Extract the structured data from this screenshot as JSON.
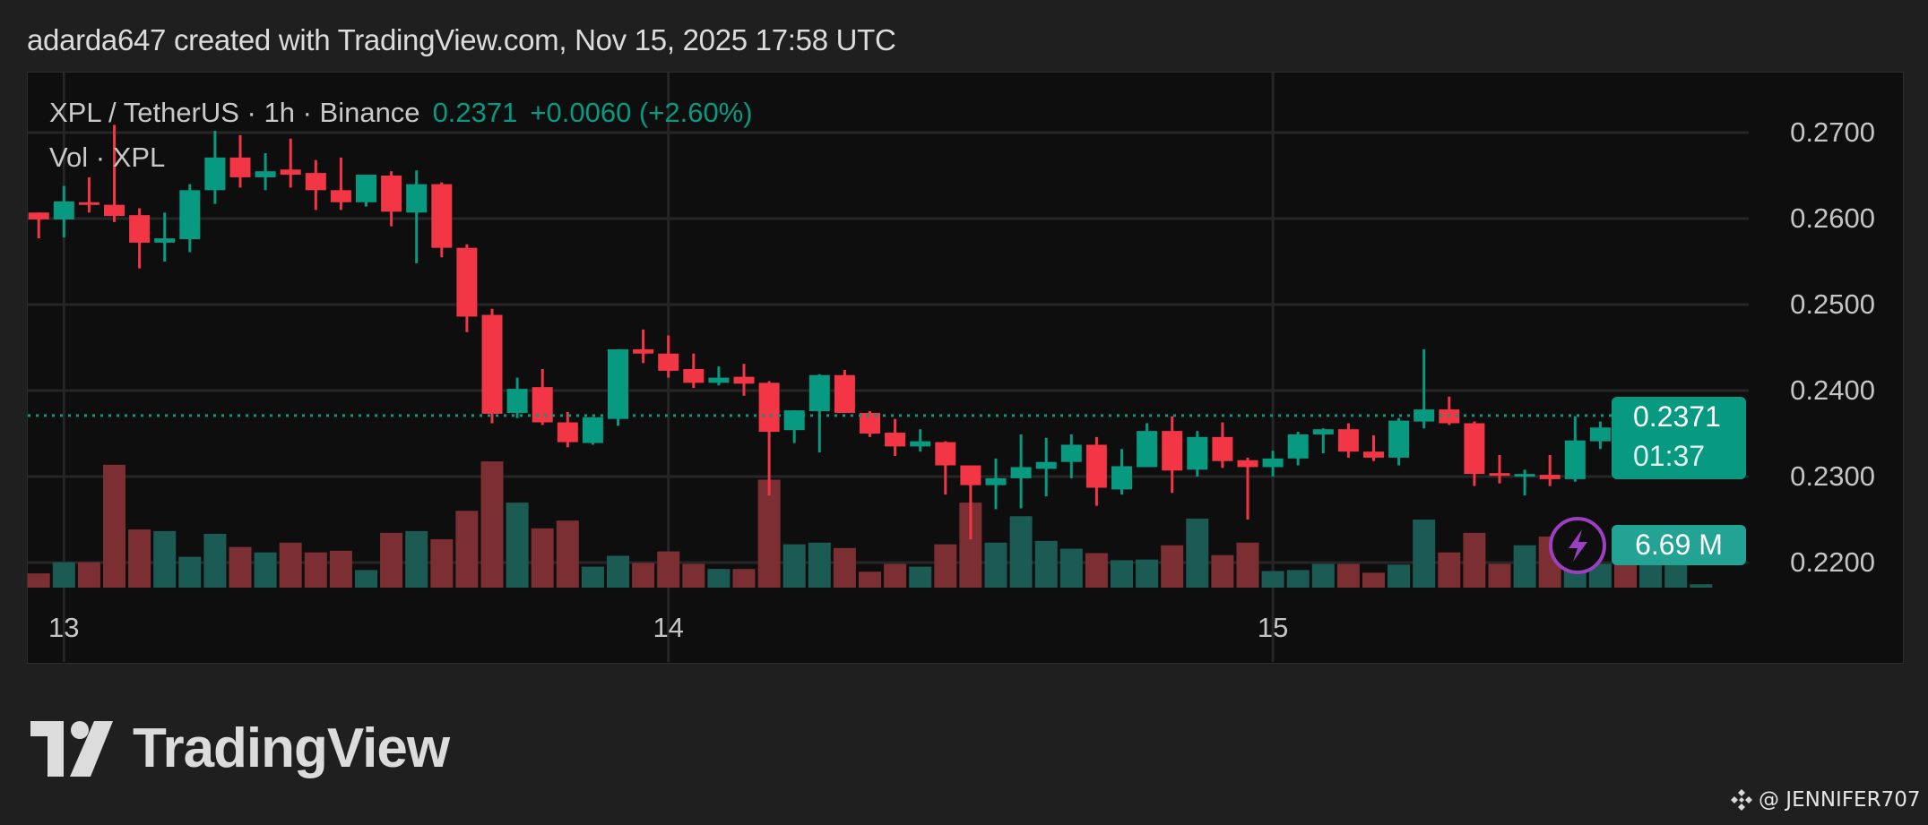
{
  "header": {
    "caption": "adarda647 created with TradingView.com, Nov 15, 2025 17:58 UTC"
  },
  "legend": {
    "symbol": "XPL / TetherUS · 1h · Binance",
    "last": "0.2371",
    "change": "+0.0060 (+2.60%)",
    "volume_label": "Vol · XPL"
  },
  "price_tag": {
    "price": "0.2371",
    "countdown": "01:37"
  },
  "volume_tag": "6.69 M",
  "logo_text": "TradingView",
  "watermark": "@ JENNIFER707",
  "colors": {
    "up": "#089981",
    "down": "#f23645",
    "vol_up": "#1c5a54",
    "vol_down": "#7b2f32",
    "bg": "#0e0e0e"
  },
  "chart_data": {
    "type": "candlestick",
    "title": "XPL / TetherUS · 1h · Binance",
    "interval": "1h",
    "x_tick_labels": [
      "13",
      "14",
      "15"
    ],
    "x_tick_candle_index": [
      1,
      25,
      49
    ],
    "y_tick_labels": [
      "0.2700",
      "0.2600",
      "0.2500",
      "0.2400",
      "0.2300",
      "0.2200"
    ],
    "y_ticks": [
      0.27,
      0.26,
      0.25,
      0.24,
      0.23,
      0.22
    ],
    "ylim": [
      0.2185,
      0.2738
    ],
    "last_price": 0.2371,
    "grid": true,
    "ohlc": [
      [
        0.2607,
        0.2607,
        0.2577,
        0.2599
      ],
      [
        0.2599,
        0.2638,
        0.2578,
        0.262
      ],
      [
        0.2619,
        0.2648,
        0.2607,
        0.2618
      ],
      [
        0.2616,
        0.2709,
        0.2596,
        0.2603
      ],
      [
        0.2604,
        0.2612,
        0.2542,
        0.2572
      ],
      [
        0.2572,
        0.2607,
        0.255,
        0.2577
      ],
      [
        0.2576,
        0.264,
        0.2561,
        0.2633
      ],
      [
        0.2633,
        0.2702,
        0.2617,
        0.2671
      ],
      [
        0.2671,
        0.2697,
        0.2636,
        0.2648
      ],
      [
        0.2648,
        0.2676,
        0.2633,
        0.2655
      ],
      [
        0.2657,
        0.2693,
        0.2636,
        0.2651
      ],
      [
        0.2653,
        0.2668,
        0.261,
        0.2633
      ],
      [
        0.2633,
        0.2671,
        0.261,
        0.2619
      ],
      [
        0.2619,
        0.2651,
        0.2614,
        0.2651
      ],
      [
        0.265,
        0.2655,
        0.2591,
        0.2608
      ],
      [
        0.2607,
        0.2656,
        0.2548,
        0.264
      ],
      [
        0.264,
        0.2642,
        0.2555,
        0.2566
      ],
      [
        0.2566,
        0.257,
        0.2468,
        0.2486
      ],
      [
        0.2488,
        0.2495,
        0.2362,
        0.2373
      ],
      [
        0.2374,
        0.2415,
        0.2368,
        0.2402
      ],
      [
        0.2404,
        0.2425,
        0.236,
        0.2363
      ],
      [
        0.2363,
        0.2375,
        0.2334,
        0.234
      ],
      [
        0.2339,
        0.2369,
        0.2337,
        0.2369
      ],
      [
        0.2367,
        0.2448,
        0.2359,
        0.2448
      ],
      [
        0.2448,
        0.2471,
        0.2432,
        0.2443
      ],
      [
        0.2443,
        0.2464,
        0.2415,
        0.2423
      ],
      [
        0.2425,
        0.2443,
        0.2403,
        0.2409
      ],
      [
        0.2409,
        0.2428,
        0.2406,
        0.2415
      ],
      [
        0.2416,
        0.2431,
        0.2394,
        0.2408
      ],
      [
        0.2409,
        0.2411,
        0.2278,
        0.2352
      ],
      [
        0.2354,
        0.2377,
        0.2339,
        0.2377
      ],
      [
        0.2376,
        0.2419,
        0.2328,
        0.2418
      ],
      [
        0.2418,
        0.2424,
        0.2374,
        0.2374
      ],
      [
        0.2374,
        0.2376,
        0.2346,
        0.235
      ],
      [
        0.2351,
        0.2367,
        0.2324,
        0.2335
      ],
      [
        0.2335,
        0.2355,
        0.2329,
        0.2341
      ],
      [
        0.234,
        0.2341,
        0.2279,
        0.2313
      ],
      [
        0.2313,
        0.2313,
        0.2227,
        0.229
      ],
      [
        0.229,
        0.2321,
        0.2262,
        0.2298
      ],
      [
        0.2298,
        0.2349,
        0.2263,
        0.2311
      ],
      [
        0.2309,
        0.2345,
        0.2277,
        0.2317
      ],
      [
        0.2317,
        0.2349,
        0.2298,
        0.2337
      ],
      [
        0.2337,
        0.2346,
        0.2266,
        0.2287
      ],
      [
        0.2285,
        0.2332,
        0.2279,
        0.2312
      ],
      [
        0.2311,
        0.2362,
        0.2311,
        0.2353
      ],
      [
        0.2353,
        0.237,
        0.2281,
        0.2307
      ],
      [
        0.2308,
        0.2353,
        0.23,
        0.2346
      ],
      [
        0.2346,
        0.2363,
        0.231,
        0.2318
      ],
      [
        0.2319,
        0.2322,
        0.225,
        0.2311
      ],
      [
        0.2311,
        0.233,
        0.23,
        0.2321
      ],
      [
        0.2321,
        0.2352,
        0.2313,
        0.2349
      ],
      [
        0.2349,
        0.2356,
        0.2327,
        0.2355
      ],
      [
        0.2355,
        0.2362,
        0.2322,
        0.2329
      ],
      [
        0.2329,
        0.2348,
        0.2318,
        0.2322
      ],
      [
        0.2322,
        0.2368,
        0.2313,
        0.2365
      ],
      [
        0.2364,
        0.2448,
        0.2356,
        0.2378
      ],
      [
        0.2378,
        0.2393,
        0.236,
        0.2362
      ],
      [
        0.2362,
        0.2364,
        0.2289,
        0.2303
      ],
      [
        0.2304,
        0.2325,
        0.2292,
        0.2302
      ],
      [
        0.2301,
        0.2308,
        0.2278,
        0.2303
      ],
      [
        0.2302,
        0.2325,
        0.2289,
        0.2297
      ],
      [
        0.2297,
        0.237,
        0.2294,
        0.2342
      ],
      [
        0.2341,
        0.2364,
        0.2332,
        0.2357
      ],
      [
        0.2358,
        0.2361,
        0.2318,
        0.2333
      ],
      [
        0.2333,
        0.2359,
        0.2322,
        0.234
      ],
      [
        0.234,
        0.2346,
        0.2315,
        0.2343
      ],
      [
        0.2342,
        0.2379,
        0.2332,
        0.2371
      ]
    ],
    "volume_millions": [
      28.1,
      50.3,
      50.3,
      243.2,
      115.2,
      111.9,
      61.0,
      106.5,
      80.4,
      69.7,
      89.1,
      69.7,
      73.0,
      34.8,
      108.5,
      111.9,
      95.8,
      152.1,
      249.9,
      168.2,
      117.3,
      132.7,
      41.5,
      63.0,
      48.9,
      71.7,
      46.9,
      36.9,
      36.9,
      213.7,
      85.8,
      89.1,
      78.4,
      31.5,
      46.9,
      41.5,
      85.8,
      168.2,
      89.1,
      141.4,
      92.5,
      77.1,
      68.3,
      54.3,
      55.6,
      83.8,
      136.7,
      64.3,
      89.1,
      32.8,
      34.8,
      46.9,
      46.9,
      29.5,
      45.6,
      134.7,
      69.7,
      108.5,
      46.9,
      83.8,
      101.2,
      126.0,
      46.9,
      55.6,
      46.9,
      66.3,
      6.69
    ]
  }
}
